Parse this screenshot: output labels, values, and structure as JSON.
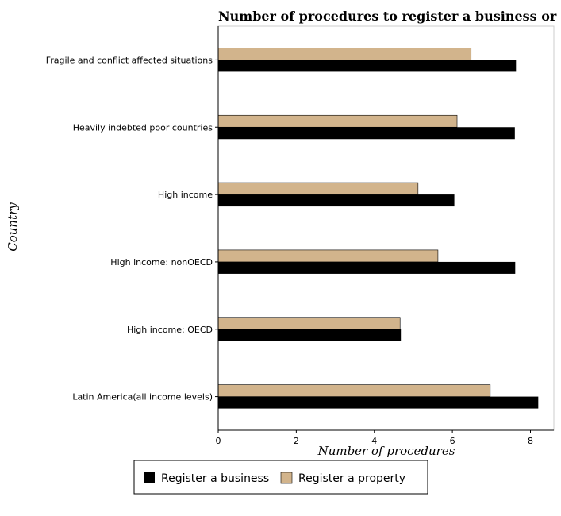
{
  "chart_data": {
    "type": "bar",
    "orientation": "horizontal",
    "title": "Number of procedures to register a business or property",
    "xlabel": "Number of procedures",
    "ylabel": "Country",
    "categories": [
      "Fragile and conflict affected situations",
      "Heavily indebted poor countries",
      "High income",
      "High income: nonOECD",
      "High income: OECD",
      "Latin America(all income levels)"
    ],
    "series": [
      {
        "name": "Register a business",
        "color": "#000000",
        "values": [
          7.63,
          7.6,
          6.05,
          7.61,
          4.68,
          8.2
        ]
      },
      {
        "name": "Register a property",
        "color": "#d2b48c",
        "values": [
          6.48,
          6.12,
          5.12,
          5.63,
          4.66,
          6.97
        ]
      }
    ],
    "xlim": [
      0,
      8.6
    ],
    "xticks": [
      0,
      2,
      4,
      6,
      8
    ],
    "grid": false,
    "legend_position": "bottom"
  }
}
